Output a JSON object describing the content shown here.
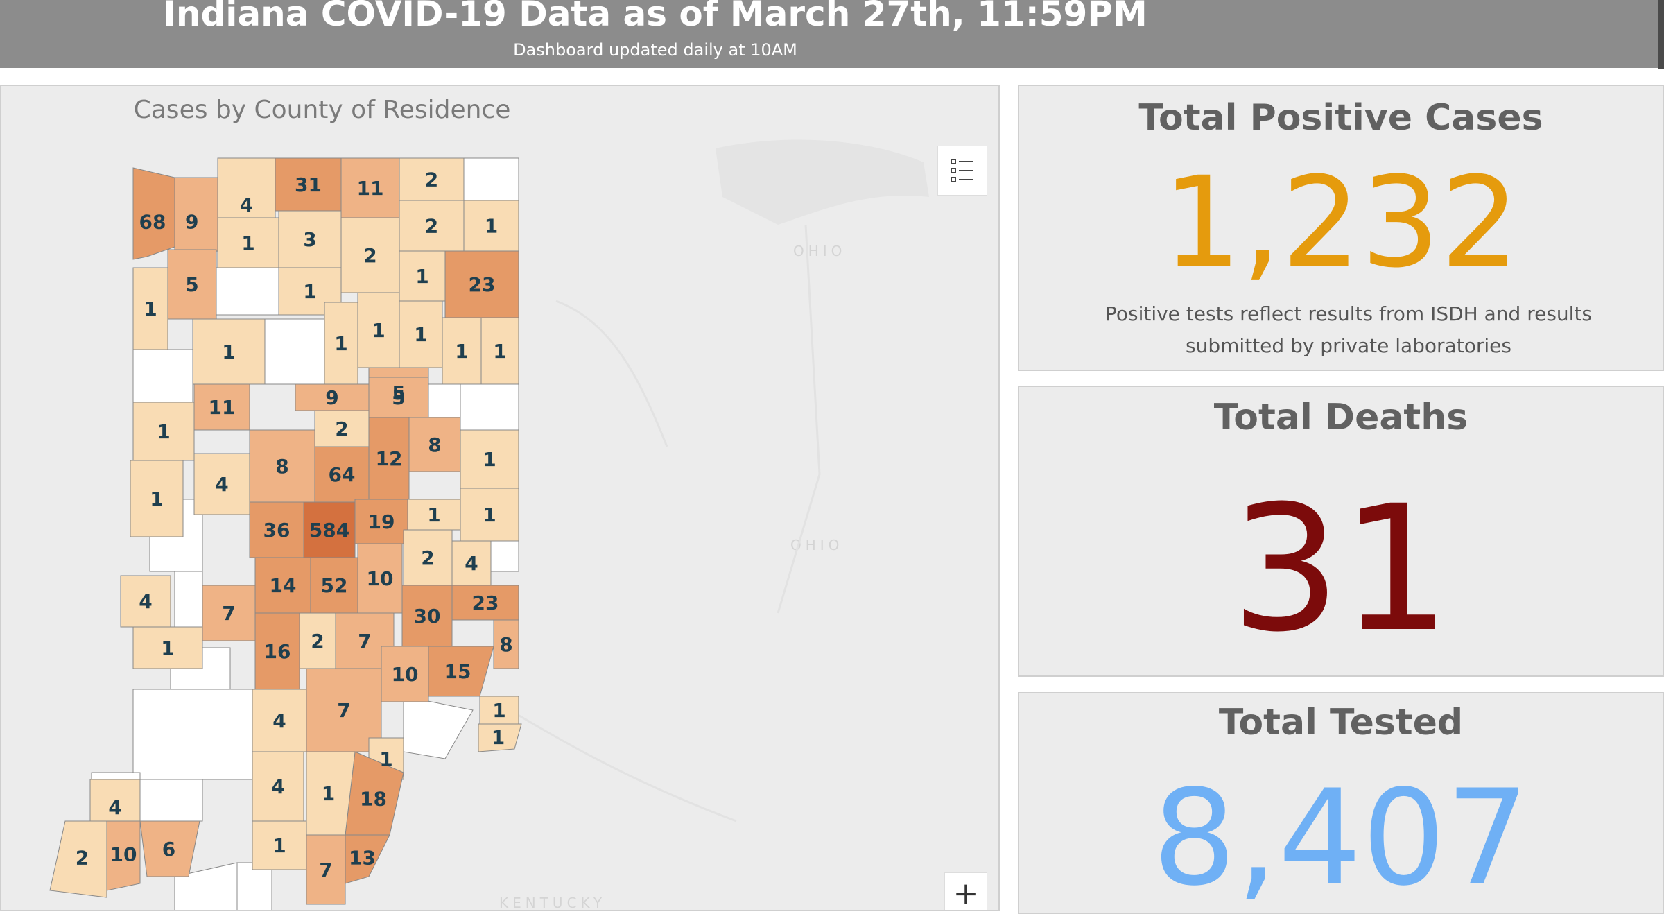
{
  "header": {
    "title": "Indiana COVID-19 Data as of March 27th, 11:59PM",
    "subtitle": "Dashboard updated daily at 10AM"
  },
  "map": {
    "title": "Cases by County of Residence",
    "basemap_labels": [
      "OHIO",
      "OHIO",
      "KENTUCKY"
    ],
    "legend_icon": "legend-list-icon",
    "zoom_in_label": "+",
    "colors": {
      "none": "#ffffff",
      "low": "#f9dcb4",
      "mid": "#efb386",
      "high": "#e59a67",
      "top": "#d4713f",
      "border": "#888888",
      "text": "#1f3f4f"
    },
    "county_counts": [
      68,
      9,
      4,
      31,
      11,
      2,
      2,
      1,
      1,
      3,
      2,
      1,
      23,
      1,
      5,
      1,
      1,
      1,
      1,
      1,
      1,
      1,
      9,
      5,
      11,
      1,
      2,
      12,
      8,
      1,
      1,
      4,
      8,
      64,
      1,
      1,
      36,
      584,
      19,
      5,
      2,
      4,
      4,
      14,
      52,
      10,
      23,
      7,
      30,
      1,
      16,
      2,
      7,
      15,
      8,
      10,
      1,
      4,
      7,
      1,
      1,
      4,
      18,
      1,
      1,
      13,
      7,
      4,
      2,
      10,
      6
    ]
  },
  "stats": {
    "positive": {
      "title": "Total Positive Cases",
      "value": "1,232",
      "note": "Positive tests reflect results from ISDH and results submitted by private laboratories",
      "color": "#e59b0d"
    },
    "deaths": {
      "title": "Total Deaths",
      "value": "31",
      "color": "#7c0b0b"
    },
    "tested": {
      "title": "Total Tested",
      "value": "8,407",
      "color": "#6fb0f5"
    }
  }
}
